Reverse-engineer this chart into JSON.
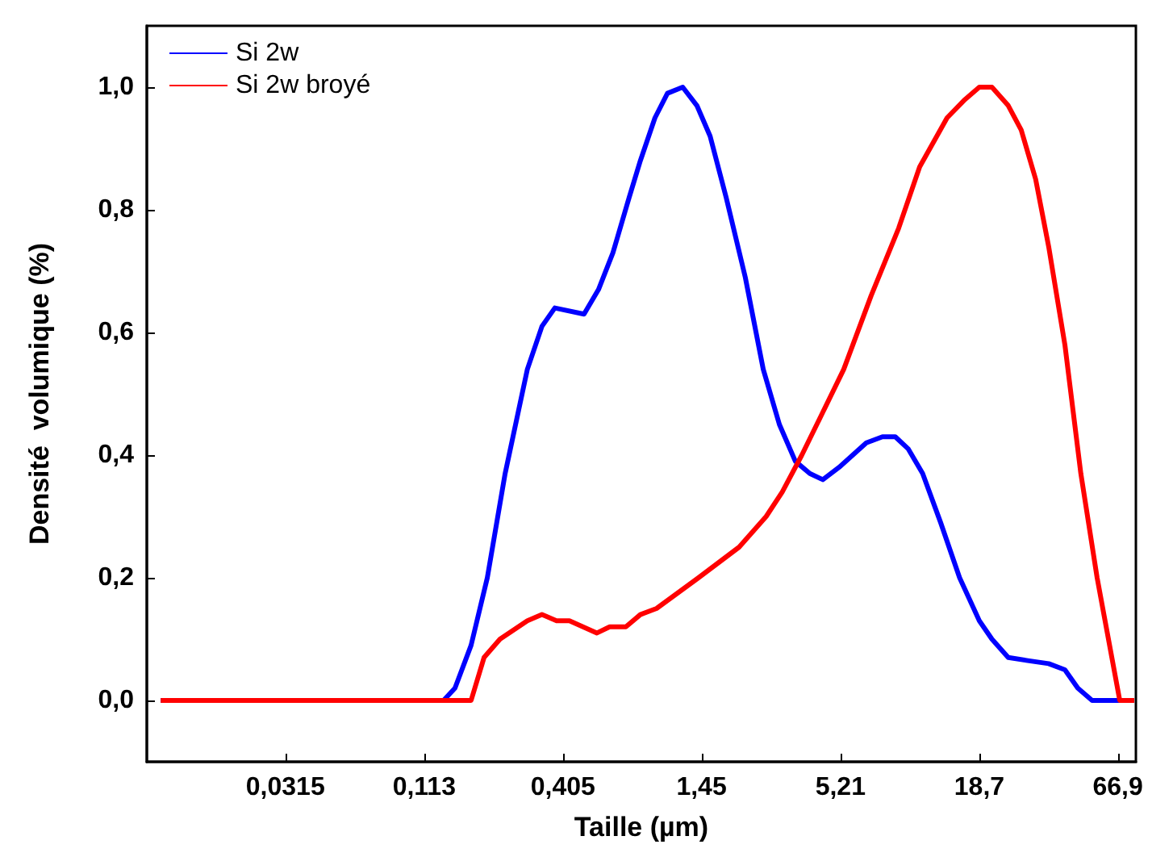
{
  "chart_data": {
    "type": "line",
    "xlabel": "Taille (µm)",
    "ylabel": "Densité  volumique (%)",
    "log": "x",
    "xlim": [
      0.0088,
      79
    ],
    "xticks": [
      {
        "value": 0.0315,
        "label": "0,0315"
      },
      {
        "value": 0.113,
        "label": "0,113"
      },
      {
        "value": 0.405,
        "label": "0,405"
      },
      {
        "value": 1.45,
        "label": "1,45"
      },
      {
        "value": 5.21,
        "label": "5,21"
      },
      {
        "value": 18.7,
        "label": "18,7"
      },
      {
        "value": 66.9,
        "label": "66,9"
      }
    ],
    "ylim": [
      -0.1,
      1.1
    ],
    "yticks": [
      {
        "value": 0,
        "label": "0,0"
      },
      {
        "value": 0.2,
        "label": "0,2"
      },
      {
        "value": 0.4,
        "label": "0,4"
      },
      {
        "value": 0.6,
        "label": "0,6"
      },
      {
        "value": 0.8,
        "label": "0,8"
      },
      {
        "value": 1.0,
        "label": "1,0"
      }
    ],
    "grid": false,
    "legend": "top left",
    "marker": "none",
    "line_style": "solid",
    "series": [
      {
        "name": "Si 2w",
        "color": "#0000ff",
        "x": [
          0.01,
          0.135,
          0.15,
          0.174,
          0.202,
          0.238,
          0.292,
          0.334,
          0.376,
          0.492,
          0.562,
          0.642,
          0.745,
          0.826,
          0.945,
          1.06,
          1.22,
          1.39,
          1.57,
          1.82,
          2.17,
          2.56,
          2.97,
          3.44,
          3.93,
          4.43,
          5.14,
          6.61,
          7.67,
          8.63,
          9.73,
          11.1,
          13.1,
          15.6,
          18.7,
          21.0,
          24.4,
          29.2,
          35.4,
          41.1,
          46.3,
          52.8,
          76.7
        ],
        "values": [
          0,
          0,
          0.02,
          0.09,
          0.2,
          0.37,
          0.54,
          0.61,
          0.64,
          0.63,
          0.67,
          0.73,
          0.82,
          0.88,
          0.95,
          0.99,
          1.0,
          0.97,
          0.92,
          0.82,
          0.69,
          0.54,
          0.45,
          0.39,
          0.37,
          0.36,
          0.38,
          0.42,
          0.43,
          0.43,
          0.41,
          0.37,
          0.29,
          0.2,
          0.13,
          0.1,
          0.07,
          0.065,
          0.06,
          0.05,
          0.02,
          0,
          0
        ]
      },
      {
        "name": "Si 2w broyé",
        "color": "#ff0000",
        "x": [
          0.01,
          0.174,
          0.196,
          0.227,
          0.292,
          0.334,
          0.382,
          0.43,
          0.554,
          0.623,
          0.723,
          0.826,
          0.959,
          1.41,
          2.05,
          2.63,
          3.05,
          3.65,
          4.43,
          5.37,
          6.91,
          8.9,
          10.8,
          13.9,
          16.4,
          18.7,
          21.0,
          24.4,
          27.5,
          31.4,
          35.4,
          41.1,
          47.6,
          55.3,
          68.1,
          77.8
        ],
        "values": [
          0,
          0,
          0.07,
          0.1,
          0.13,
          0.14,
          0.13,
          0.13,
          0.11,
          0.12,
          0.12,
          0.14,
          0.15,
          0.2,
          0.25,
          0.3,
          0.34,
          0.4,
          0.47,
          0.54,
          0.66,
          0.77,
          0.87,
          0.95,
          0.98,
          1.0,
          1.0,
          0.97,
          0.93,
          0.85,
          0.74,
          0.58,
          0.37,
          0.2,
          0,
          0
        ]
      }
    ]
  }
}
